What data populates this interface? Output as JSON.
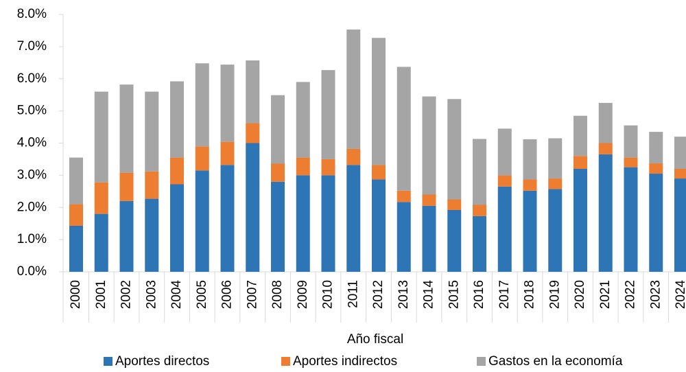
{
  "chart_data": {
    "type": "stacked_bar",
    "x_label": "Año fiscal",
    "categories": [
      "2000",
      "2001",
      "2002",
      "2003",
      "2004",
      "2005",
      "2006",
      "2007",
      "2008",
      "2009",
      "2010",
      "2011",
      "2012",
      "2013",
      "2014",
      "2015",
      "2016",
      "2017",
      "2018",
      "2019",
      "2020",
      "2021",
      "2022",
      "2023",
      "2024"
    ],
    "series": [
      {
        "name": "Aportes directos",
        "color": "#2e75b6",
        "values": [
          1.43,
          1.8,
          2.2,
          2.27,
          2.72,
          3.15,
          3.32,
          4.0,
          2.8,
          3.0,
          3.0,
          3.32,
          2.87,
          2.17,
          2.05,
          1.92,
          1.73,
          2.65,
          2.52,
          2.57,
          3.2,
          3.65,
          3.25,
          3.05,
          2.9
        ]
      },
      {
        "name": "Aportes indirectos",
        "color": "#ed7d31",
        "values": [
          0.67,
          0.98,
          0.88,
          0.85,
          0.83,
          0.75,
          0.72,
          0.62,
          0.56,
          0.55,
          0.5,
          0.5,
          0.45,
          0.35,
          0.35,
          0.33,
          0.35,
          0.35,
          0.35,
          0.33,
          0.4,
          0.35,
          0.3,
          0.32,
          0.3
        ]
      },
      {
        "name": "Gastos en la economía",
        "color": "#a5a5a5",
        "values": [
          1.45,
          2.82,
          2.74,
          2.48,
          2.37,
          2.58,
          2.4,
          1.95,
          2.13,
          2.35,
          2.77,
          3.71,
          3.95,
          3.85,
          3.05,
          3.12,
          2.05,
          1.45,
          1.25,
          1.25,
          1.25,
          1.25,
          1.0,
          0.98,
          1.0
        ]
      }
    ],
    "ylim": [
      0,
      8
    ],
    "yticks": [
      {
        "value": 0,
        "label": "0.0%"
      },
      {
        "value": 1,
        "label": "1.0%"
      },
      {
        "value": 2,
        "label": "2.0%"
      },
      {
        "value": 3,
        "label": "3.0%"
      },
      {
        "value": 4,
        "label": "4.0%"
      },
      {
        "value": 5,
        "label": "5.0%"
      },
      {
        "value": 6,
        "label": "6.0%"
      },
      {
        "value": 7,
        "label": "7.0%"
      },
      {
        "value": 8,
        "label": "8.0%"
      }
    ],
    "grid": false,
    "legend": "bottom"
  }
}
